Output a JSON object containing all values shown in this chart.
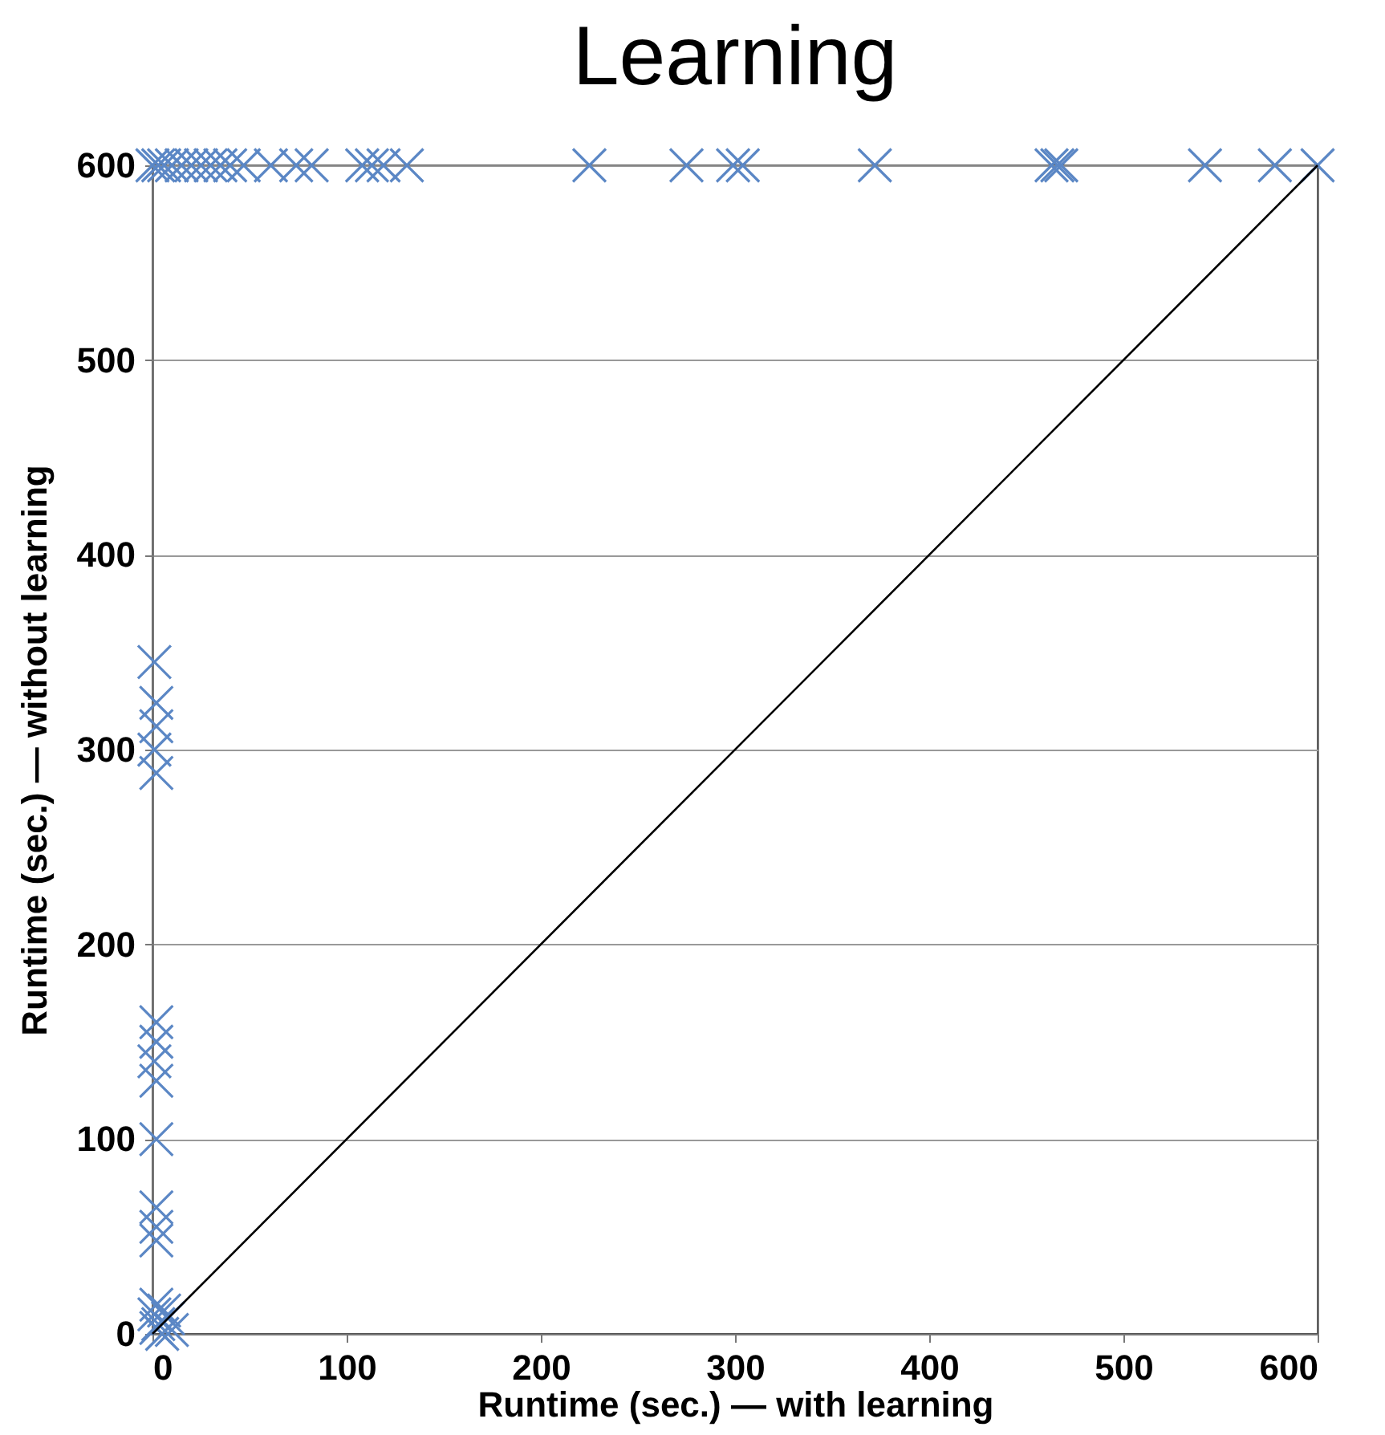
{
  "chart_data": {
    "type": "scatter",
    "title": "Learning",
    "xlabel": "Runtime (sec.) — with learning",
    "ylabel": "Runtime (sec.) — without learning",
    "xlim": [
      0,
      600
    ],
    "ylim": [
      0,
      600
    ],
    "xticks": [
      0,
      100,
      200,
      300,
      400,
      500,
      600
    ],
    "yticks": [
      0,
      100,
      200,
      300,
      400,
      500,
      600
    ],
    "grid": "y",
    "marker": "cross",
    "series": [
      {
        "color": "#5b87c5",
        "x": [
          0,
          3,
          6,
          10,
          15,
          20,
          25,
          30,
          35,
          40,
          47,
          61,
          74,
          82,
          108,
          113,
          119,
          131,
          225,
          275,
          299,
          304,
          372,
          463,
          466,
          468,
          542,
          578,
          600,
          1,
          2,
          2,
          1,
          2,
          2,
          2,
          1,
          2,
          2,
          2,
          2,
          2,
          2,
          1,
          3,
          5,
          8,
          2,
          6,
          10
        ],
        "values": [
          600,
          600,
          600,
          600,
          600,
          600,
          600,
          600,
          600,
          600,
          600,
          600,
          600,
          600,
          600,
          600,
          600,
          600,
          600,
          600,
          600,
          600,
          600,
          600,
          600,
          600,
          600,
          600,
          600,
          345,
          324,
          312,
          300,
          288,
          160,
          150,
          140,
          130,
          100,
          65,
          55,
          48,
          15,
          10,
          5,
          0,
          8,
          3,
          12,
          2
        ]
      },
      {
        "type": "line",
        "color": "#000000",
        "x": [
          0,
          600
        ],
        "values": [
          0,
          600
        ]
      }
    ]
  }
}
